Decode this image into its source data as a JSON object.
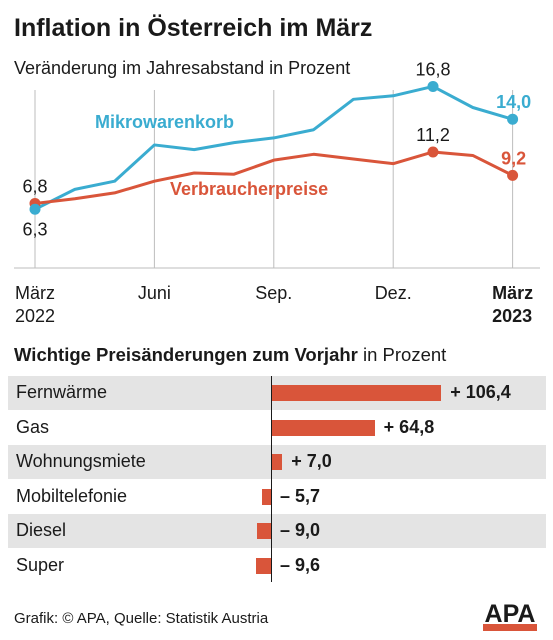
{
  "colors": {
    "mikrowarenkorb": "#3aacd0",
    "verbraucherpreise": "#d9553a",
    "grid": "#bdbdbd"
  },
  "header": {
    "title": "Inflation in Österreich im März",
    "subtitle": "Veränderung im Jahresabstand in Prozent"
  },
  "chart_data": [
    {
      "type": "line",
      "x": [
        "2022-03",
        "2022-04",
        "2022-05",
        "2022-06",
        "2022-07",
        "2022-08",
        "2022-09",
        "2022-10",
        "2022-11",
        "2022-12",
        "2023-01",
        "2023-02",
        "2023-03"
      ],
      "x_tick_labels": [
        {
          "x": "2022-03",
          "line1": "März",
          "line2": "2022",
          "bold": false
        },
        {
          "x": "2022-06",
          "line1": "Juni",
          "line2": "",
          "bold": false
        },
        {
          "x": "2022-09",
          "line1": "Sep.",
          "line2": "",
          "bold": false
        },
        {
          "x": "2022-12",
          "line1": "Dez.",
          "line2": "",
          "bold": false
        },
        {
          "x": "2023-03",
          "line1": "März",
          "line2": "2023",
          "bold": true
        }
      ],
      "series": [
        {
          "name": "Mikrowarenkorb",
          "color": "#3aacd0",
          "values": [
            6.3,
            8.0,
            8.7,
            11.8,
            11.4,
            12.0,
            12.4,
            13.1,
            15.7,
            16.0,
            16.8,
            15.0,
            14.0
          ]
        },
        {
          "name": "Verbraucherpreise",
          "color": "#d9553a",
          "values": [
            6.8,
            7.2,
            7.7,
            8.7,
            9.4,
            9.3,
            10.5,
            11.0,
            10.6,
            10.2,
            11.2,
            10.9,
            9.2
          ]
        }
      ],
      "annotations": [
        {
          "series": 1,
          "index": 0,
          "text": "6,8",
          "pos": "above"
        },
        {
          "series": 0,
          "index": 0,
          "text": "6,3",
          "pos": "below"
        },
        {
          "series": 0,
          "index": 10,
          "text": "16,8",
          "pos": "above"
        },
        {
          "series": 0,
          "index": 12,
          "text": "14,0",
          "pos": "above",
          "bold": true
        },
        {
          "series": 1,
          "index": 10,
          "text": "11,2",
          "pos": "above"
        },
        {
          "series": 1,
          "index": 12,
          "text": "9,2",
          "pos": "above",
          "bold": true
        }
      ],
      "ylim": [
        0,
        18
      ],
      "grid": true
    },
    {
      "type": "bar",
      "title_bold": "Wichtige Preisänderungen zum Vorjahr",
      "title_unit": "in Prozent",
      "categories": [
        "Fernwärme",
        "Gas",
        "Wohnungsmiete",
        "Mobiltelefonie",
        "Diesel",
        "Super"
      ],
      "values": [
        106.4,
        64.8,
        7.0,
        -5.7,
        -9.0,
        -9.6
      ],
      "value_labels": [
        "+ 106,4",
        "+ 64,8",
        "+ 7,0",
        "– 5,7",
        "– 9,0",
        "– 9,6"
      ],
      "color": "#d9553a"
    }
  ],
  "footer": {
    "source": "Grafik: © APA, Quelle: Statistik Austria",
    "logo_text": "APA"
  }
}
